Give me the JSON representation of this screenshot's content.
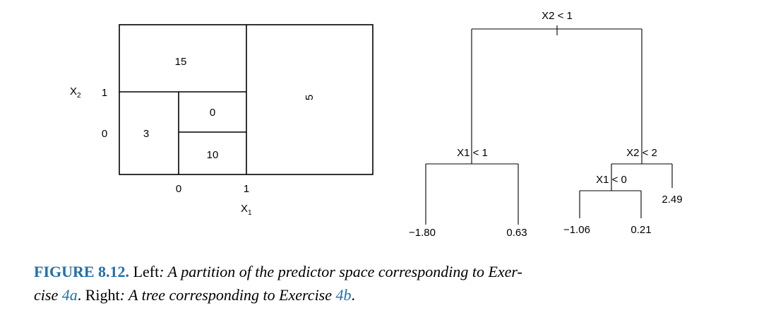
{
  "partition": {
    "axis_x_label": "X",
    "axis_x_sub": "1",
    "axis_y_label": "X",
    "axis_y_sub": "2",
    "ticks_x": [
      "0",
      "1"
    ],
    "ticks_y": [
      "1",
      "0"
    ],
    "regions": [
      "15",
      "3",
      "0",
      "10",
      "5"
    ]
  },
  "tree": {
    "splits": [
      "X2 < 1",
      "X1 < 1",
      "X2 < 2",
      "X1 < 0"
    ],
    "leaves": [
      "−1.80",
      "0.63",
      "−1.06",
      "0.21",
      "2.49"
    ]
  },
  "caption": {
    "figure_label": "FIGURE 8.12.",
    "left_word": "Left",
    "left_text": ": A partition of the predictor space corresponding to Exer-",
    "left_text2": "cise ",
    "ref_a": "4a",
    "right_word": ". Right",
    "right_text": ": A tree corresponding to Exercise ",
    "ref_b": "4b",
    "end": "."
  }
}
